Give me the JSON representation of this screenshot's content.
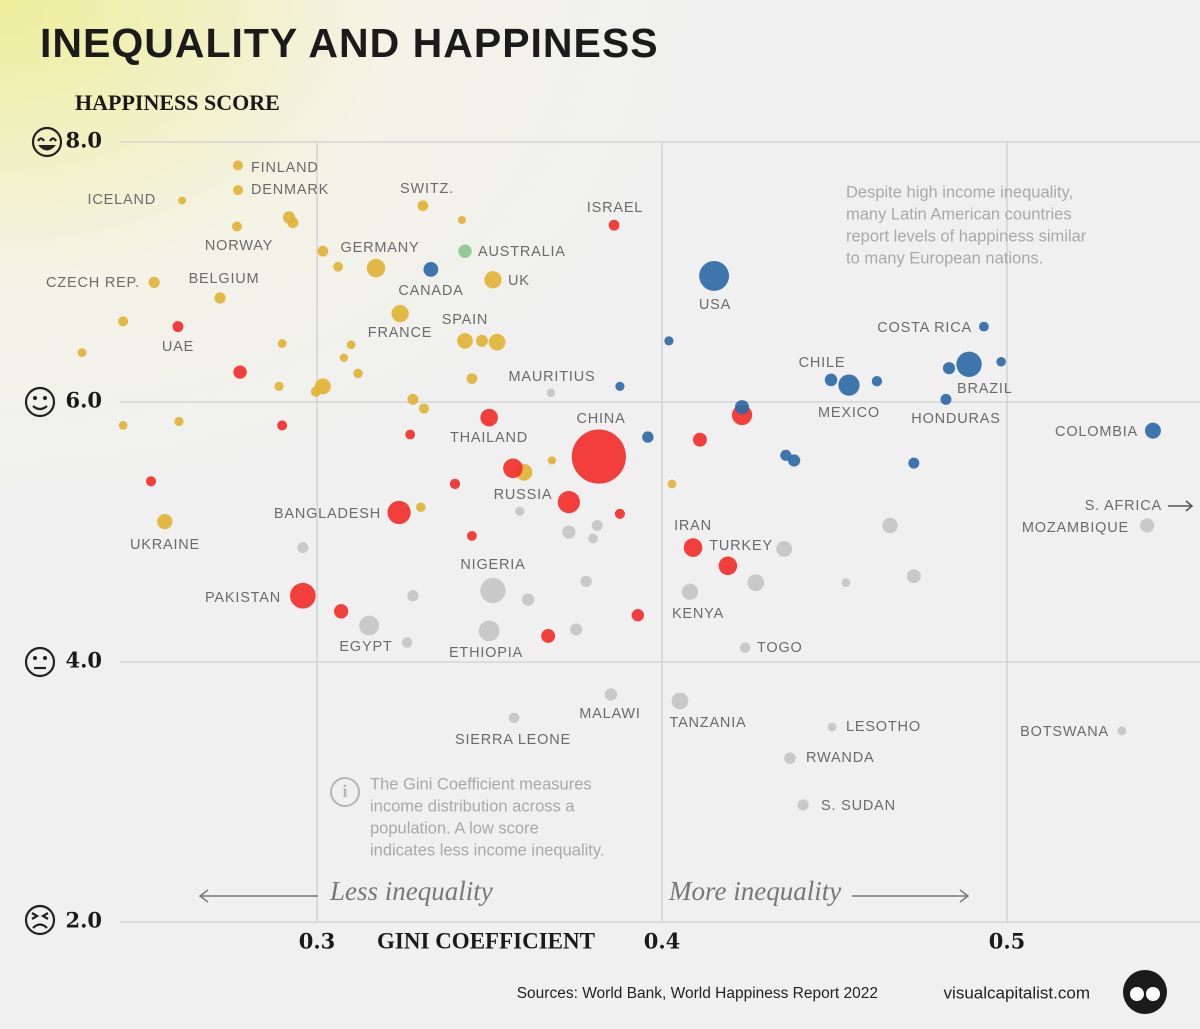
{
  "chart_data": {
    "type": "scatter",
    "title": "INEQUALITY AND HAPPINESS",
    "y_label": "HAPPINESS SCORE",
    "x_label": "GINI COEFFICIENT",
    "xlim": [
      0.23,
      0.556
    ],
    "ylim": [
      2.0,
      8.0
    ],
    "xticks": [
      0.3,
      0.4,
      0.5
    ],
    "yticks": [
      {
        "value": 2,
        "label": "2.0"
      },
      {
        "value": 4,
        "label": "4.0"
      },
      {
        "value": 6,
        "label": "6.0"
      },
      {
        "value": 8,
        "label": "8.0"
      }
    ],
    "grid": true,
    "series": [
      {
        "color": "#e2b437",
        "x": [
          0.2771,
          0.2771,
          0.2609,
          0.3307,
          0.342,
          0.2768,
          0.2919,
          0.293,
          0.3171,
          0.3017,
          0.3061,
          0.2528,
          0.2719,
          0.351,
          0.3241,
          0.2438,
          0.3429,
          0.3478,
          0.3522,
          0.3099,
          0.2899,
          0.2319,
          0.3078,
          0.3119,
          0.289,
          0.3017,
          0.2997,
          0.3449,
          0.3278,
          0.331,
          0.2438,
          0.26,
          0.3681,
          0.36,
          0.4029,
          0.3301,
          0.2559
        ],
        "values": [
          7.82,
          7.63,
          7.55,
          7.51,
          7.4,
          7.35,
          7.42,
          7.38,
          7.03,
          7.16,
          7.04,
          6.92,
          6.8,
          6.94,
          6.68,
          6.62,
          6.47,
          6.47,
          6.46,
          6.44,
          6.45,
          6.38,
          6.34,
          6.22,
          6.12,
          6.12,
          6.08,
          6.18,
          6.02,
          5.95,
          5.82,
          5.85,
          5.55,
          5.46,
          5.37,
          5.19,
          5.08
        ],
        "sizes": [
          5.5,
          5.8,
          0.4,
          8.7,
          0.6,
          5.4,
          17,
          10,
          83,
          9,
          5,
          10.5,
          11.5,
          67,
          67,
          5.5,
          47,
          16,
          59,
          2,
          2,
          2,
          1.3,
          4,
          3,
          51,
          7,
          9,
          10,
          6,
          2,
          3,
          1,
          60,
          2,
          4,
          43
        ],
        "labels": [
          "FINLAND",
          "DENMARK",
          "ICELAND",
          "SWITZ.",
          null,
          "NORWAY",
          null,
          null,
          "GERMANY",
          null,
          null,
          "CZECH REP.",
          "BELGIUM",
          "UK",
          "FRANCE",
          null,
          "SPAIN",
          null,
          null,
          null,
          null,
          null,
          null,
          null,
          null,
          null,
          null,
          null,
          null,
          null,
          null,
          null,
          null,
          null,
          null,
          null,
          "UKRAINE"
        ]
      },
      {
        "color": "#f2302b",
        "x": [
          0.3861,
          0.2597,
          0.2777,
          0.2899,
          0.327,
          0.3499,
          0.3817,
          0.3568,
          0.34,
          0.2519,
          0.373,
          0.3238,
          0.3878,
          0.3449,
          0.409,
          0.4191,
          0.2959,
          0.307,
          0.393,
          0.367,
          0.411,
          0.4232
        ],
        "values": [
          7.36,
          6.58,
          6.23,
          5.82,
          5.75,
          5.88,
          5.58,
          5.49,
          5.37,
          5.39,
          5.23,
          5.15,
          5.14,
          4.97,
          4.88,
          4.74,
          4.51,
          4.39,
          4.36,
          4.2,
          5.71,
          5.9
        ],
        "sizes": [
          9,
          10,
          25,
          6,
          5,
          70,
          1400,
          100,
          7,
          6,
          145,
          165,
          6,
          5,
          85,
          84,
          220,
          33,
          18,
          30,
          30,
          110
        ],
        "labels": [
          "ISRAEL",
          "UAE",
          null,
          null,
          null,
          "THAILAND",
          "CHINA",
          null,
          null,
          null,
          "RUSSIA",
          "BANGLADESH",
          null,
          null,
          "IRAN",
          "TURKEY",
          "PAKISTAN",
          null,
          null,
          null,
          null,
          null
        ]
      },
      {
        "color": "#2f6aa6",
        "x": [
          0.333,
          0.4151,
          0.4933,
          0.402,
          0.3878,
          0.449,
          0.4542,
          0.4623,
          0.4832,
          0.489,
          0.4983,
          0.4823,
          0.4232,
          0.3959,
          0.5423,
          0.4359,
          0.4383,
          0.473
        ],
        "values": [
          7.02,
          6.97,
          6.58,
          6.47,
          6.12,
          6.17,
          6.13,
          6.16,
          6.26,
          6.29,
          6.31,
          6.02,
          5.96,
          5.73,
          5.78,
          5.59,
          5.55,
          5.53
        ],
        "sizes": [
          38,
          330,
          5,
          3,
          3,
          19,
          128,
          7,
          17,
          213,
          4,
          10,
          33,
          12,
          51,
          11,
          17,
          10
        ],
        "labels": [
          "CANADA",
          "USA",
          "COSTA RICA",
          null,
          null,
          "CHILE",
          "MEXICO",
          null,
          null,
          "BRAZIL",
          null,
          "HONDURAS",
          null,
          null,
          "COLOMBIA",
          null,
          null,
          null
        ]
      },
      {
        "color": "#c6c6c6",
        "x": [
          0.3678,
          0.3588,
          0.3812,
          0.373,
          0.38,
          0.2959,
          0.351,
          0.378,
          0.3612,
          0.3278,
          0.3151,
          0.3499,
          0.3751,
          0.3261,
          0.3852,
          0.3571,
          0.4052,
          0.4081,
          0.4272,
          0.4354,
          0.4241,
          0.4533,
          0.4661,
          0.473,
          0.5406,
          0.4493,
          0.4371,
          0.4409,
          0.5333
        ],
        "values": [
          6.07,
          5.16,
          5.05,
          5.0,
          4.95,
          4.88,
          4.55,
          4.62,
          4.48,
          4.51,
          4.28,
          4.24,
          4.25,
          4.15,
          3.75,
          3.57,
          3.7,
          4.54,
          4.61,
          4.87,
          4.11,
          4.61,
          5.05,
          4.66,
          5.05,
          3.5,
          3.26,
          2.9,
          3.47
        ],
        "sizes": [
          1.3,
          3,
          10,
          25,
          5,
          10,
          210,
          12,
          17,
          12,
          104,
          118,
          17,
          8,
          19,
          8,
          60,
          54,
          60,
          50,
          8,
          2,
          45,
          30,
          32,
          2,
          13,
          11,
          2.4
        ],
        "labels": [
          "MAURITIUS",
          null,
          null,
          null,
          null,
          null,
          "NIGERIA",
          null,
          null,
          null,
          "EGYPT",
          "ETHIOPIA",
          null,
          null,
          "MALAWI",
          "SIERRA LEONE",
          "TANZANIA",
          "KENYA",
          null,
          null,
          "TOGO",
          null,
          null,
          null,
          "MOZAMBIQUE",
          "LESOTHO",
          "RWANDA",
          "S. SUDAN",
          "BOTSWANA"
        ]
      },
      {
        "color": "#8dc68f",
        "x": [
          0.3429
        ],
        "values": [
          7.16
        ],
        "sizes": [
          26
        ],
        "labels": [
          "AUSTRALIA"
        ]
      }
    ],
    "annotations": {
      "latin_america": [
        "Despite high income inequality,",
        "many Latin American countries",
        "report levels of happiness similar",
        "to many European nations."
      ],
      "gini_note": [
        "The Gini Coefficient measures",
        "income distribution across a",
        "population. A low score",
        "indicates less income inequality."
      ],
      "less": "Less inequality",
      "more": "More inequality",
      "offscale": "S. AFRICA"
    },
    "source": "Sources: World Bank, World Happiness Report 2022",
    "brand": "visualcapitalist.com"
  }
}
